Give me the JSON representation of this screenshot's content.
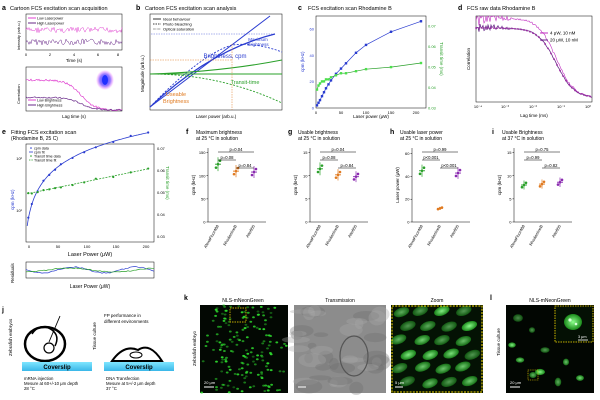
{
  "panels": {
    "a": {
      "letter": "a",
      "title": "Cartoon FCS excitation scan acquisition",
      "top": {
        "ylabel": "Intensity (arb.u.)",
        "xlabel": "Time (s)",
        "xticks": [
          "0",
          "2",
          "4",
          "6",
          "8"
        ],
        "legend": [
          "Low Laserpower",
          "High Laserpower"
        ],
        "colors": {
          "low": "#e040d0",
          "high": "#6a2a8a"
        }
      },
      "bottom": {
        "ylabel": "Correlation",
        "xlabel": "Lag time (s)",
        "legend": [
          "Low Brightness",
          "High Brightness"
        ]
      }
    },
    "b": {
      "letter": "b",
      "title": "Cartoon FCS excitation scan analysis",
      "ylabel": "Magnitude (arb.u.)",
      "xlabel": "Laser power (arb.u.)",
      "legend": [
        "Ideal behaviour",
        "Photo bleaching",
        "Optical saturation"
      ],
      "labels": {
        "max": "Maximum",
        "max2": "Brightness",
        "brightness": "Brightness, cpm",
        "transit": "Transit-time",
        "usable": "Useable",
        "usable2": "Brightness"
      }
    },
    "c": {
      "letter": "c",
      "title": "FCS excitation scan Rhodamine B",
      "ylabel": "cpm (kHz)",
      "ylabel_right": "Transit time (ms)",
      "xlabel": "Laser power (μW)",
      "yticks": [
        "0",
        "20",
        "40",
        "60"
      ],
      "yticks_right": [
        "0.03",
        "0.04",
        "0.05",
        "0.06",
        "0.07"
      ],
      "xticks": [
        "0",
        "50",
        "100",
        "150",
        "200"
      ],
      "chart_data": {
        "type": "scatter",
        "x": [
          2,
          5,
          8,
          12,
          16,
          20,
          25,
          30,
          40,
          50,
          60,
          80,
          100,
          150,
          210
        ],
        "series": [
          {
            "name": "cpm",
            "axis": "left",
            "values": [
              2,
              4,
              6,
              9,
              12,
              15,
              18,
              21,
              26,
              30,
              34,
              42,
              48,
              58,
              66
            ]
          },
          {
            "name": "transit",
            "axis": "right",
            "values": [
              0.039,
              0.041,
              0.042,
              0.043,
              0.043,
              0.044,
              0.044,
              0.045,
              0.046,
              0.047,
              0.047,
              0.048,
              0.049,
              0.05,
              0.052
            ]
          }
        ],
        "xlim": [
          0,
          220
        ],
        "ylim": [
          0,
          70
        ],
        "ylim_right": [
          0.03,
          0.075
        ]
      }
    },
    "d": {
      "letter": "d",
      "title": "FCS raw data Rhodamine B",
      "ylabel": "Correlation",
      "xlabel": "Lag time (ms)",
      "xticks": [
        "10⁻⁴",
        "10⁻³",
        "10⁻²",
        "10⁻¹",
        "10⁰"
      ],
      "legend": [
        "4 μW, 10 nM",
        "20 μW, 10 nM"
      ]
    },
    "e": {
      "letter": "e",
      "title": "Fitting FCS excitation scan",
      "subtitle": "(Rhodamine B, 25 C)",
      "ylabel": "cpm (kHz)",
      "ylabel_right": "Transit time (ms)",
      "xlabel": "Laser Power (μW)",
      "legend": [
        "cpm data",
        "cpm fit",
        "Transit time data",
        "Transit time fit"
      ],
      "xticks": [
        "0",
        "50",
        "100",
        "150",
        "200"
      ],
      "yticks": [
        "10¹",
        "10²"
      ],
      "yticks_right": [
        "0.03",
        "0.04",
        "0.05",
        "0.06",
        "0.07"
      ],
      "residuals_label": "Residuals",
      "residuals_xlabel": "Laser Power (μW)"
    },
    "f": {
      "letter": "f",
      "title": "Maximum brightness",
      "title2": "at 25 °C in solution",
      "ylabel": "cpm (kHz)",
      "yticks": [
        "0",
        "50",
        "100",
        "150"
      ],
      "categories": [
        "AlexaFluor488",
        "RhodamineB",
        "Atto655"
      ],
      "pvals": [
        "p=0.04",
        "p=0.08",
        "p=0.84"
      ],
      "chart_data": {
        "type": "dot",
        "values": [
          125,
          110,
          108
        ],
        "ylim": [
          0,
          160
        ]
      }
    },
    "g": {
      "letter": "g",
      "title": "Usable brightness",
      "title2": "at 25 °C in solution",
      "ylabel": "cpm (kHz)",
      "yticks": [
        "0",
        "5",
        "10",
        "15"
      ],
      "categories": [
        "AlexaFluor488",
        "RhodamineB",
        "Atto655"
      ],
      "pvals": [
        "p=0.04",
        "p=0.08",
        "p=0.84"
      ],
      "chart_data": {
        "type": "dot",
        "values": [
          11.5,
          10.2,
          9.8
        ],
        "ylim": [
          0,
          16
        ]
      }
    },
    "h": {
      "letter": "h",
      "title": "Usable laser power",
      "title2": "at 25 °C in solution",
      "ylabel": "Laser power (μW)",
      "yticks": [
        "0",
        "20",
        "40",
        "60"
      ],
      "categories": [
        "AlexaFluor488",
        "RhodamineB",
        "Atto655"
      ],
      "pvals": [
        "p=0.99",
        "p<0.001",
        "p<0.001"
      ],
      "chart_data": {
        "type": "dot",
        "values": [
          45,
          12,
          43
        ],
        "ylim": [
          0,
          65
        ]
      }
    },
    "i": {
      "letter": "i",
      "title": "Usable Brightness",
      "title2": "at 37 °C in solution",
      "ylabel": "cpm (kHz)",
      "yticks": [
        "0",
        "5",
        "10",
        "15"
      ],
      "categories": [
        "AlexaFluor488",
        "RhodamineB",
        "Atto655"
      ],
      "pvals": [
        "p=0.75",
        "p=0.99",
        "p=0.82"
      ],
      "chart_data": {
        "type": "dot",
        "values": [
          8,
          8.2,
          8.6
        ],
        "ylim": [
          0,
          16
        ]
      }
    },
    "j": {
      "letter": "j",
      "left_vertical": "Zebrafish embryos",
      "right_vertical": "Tissue culture",
      "heading": "FP performance in",
      "heading2": "different environments",
      "coverslip": "Coverslip",
      "left_caption": [
        "mRNA injection",
        "Mesure at 60+/-10 μm depth",
        "28 °C"
      ],
      "right_caption": [
        "DNA Transfection",
        "Mesure at 5+/-2 μm depth",
        "37 °C"
      ]
    },
    "k": {
      "letter": "k",
      "vertical": "Zebrafish embryo",
      "titles": [
        "NLS-mNeonGreen",
        "Transmission",
        "Zoom"
      ],
      "scalebars": [
        "20 μm",
        "5 μm"
      ]
    },
    "l": {
      "letter": "l",
      "vertical": "Tissue culture",
      "title": "NLS-mNeonGreen",
      "scalebars": [
        "20 μm",
        "3 μm"
      ]
    }
  },
  "colors": {
    "blue": "#2a3cd0",
    "green": "#2aa02a",
    "magenta": "#c02cc0",
    "purple": "#6a2a8a",
    "orange": "#e07a20",
    "lime": "#4ce04c"
  }
}
